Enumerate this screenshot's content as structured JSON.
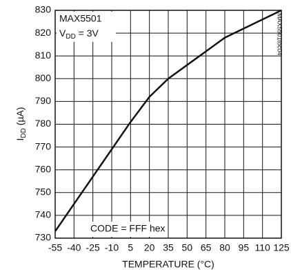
{
  "chart_data": {
    "type": "line",
    "ylabel": [
      "I",
      "DD",
      " (µA)"
    ],
    "xlabel": "TEMPERATURE (°C)",
    "annotations": {
      "part": "MAX5501",
      "supply": [
        "V",
        "DD",
        " = 3V"
      ],
      "code": "CODE = FFF hex",
      "id": "MAX5501toc04"
    },
    "x": [
      -55,
      -40,
      -25,
      -10,
      5,
      20,
      35,
      50,
      65,
      80,
      95,
      110,
      125
    ],
    "series": [
      {
        "name": "IDD",
        "color": "#111111",
        "values": [
          733,
          745,
          757,
          769,
          781,
          792,
          800,
          806,
          812,
          818,
          822,
          826,
          830
        ]
      }
    ],
    "xlim": [
      -55,
      125
    ],
    "xticks": [
      -55,
      -40,
      -25,
      -10,
      5,
      20,
      35,
      50,
      65,
      80,
      95,
      110,
      125
    ],
    "ylim": [
      730,
      830
    ],
    "yticks": [
      730,
      740,
      750,
      760,
      770,
      780,
      790,
      800,
      810,
      820,
      830
    ],
    "grid": true
  }
}
